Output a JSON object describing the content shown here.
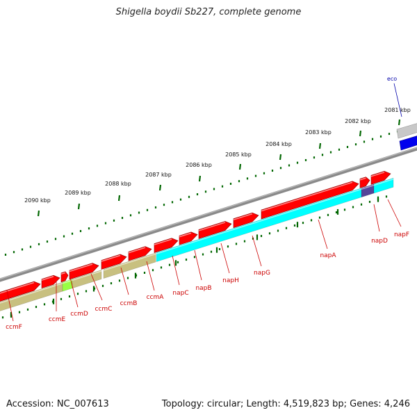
{
  "title": "Shigella boydii Sb227, complete genome",
  "accession_text": "Accession: NC_007613",
  "topology_text": "Topology: circular; Length: 4,519,823 bp; Genes: 4,246",
  "colors": {
    "backbone": "#8a8a8a",
    "gene_forward": "#ff0000",
    "ccm_operon": "#c8c080",
    "nap_operon": "#00ffff",
    "highlight_green": "#99ff44",
    "highlight_purple": "#554499",
    "gene_label": "#cc0000",
    "eco_label": "#0000aa",
    "tick": "#006600"
  },
  "ruler": [
    {
      "label": "2081 kbp"
    },
    {
      "label": "2082 kbp"
    },
    {
      "label": "2083 kbp"
    },
    {
      "label": "2084 kbp"
    },
    {
      "label": "2085 kbp"
    },
    {
      "label": "2086 kbp"
    },
    {
      "label": "2087 kbp"
    },
    {
      "label": "2088 kbp"
    },
    {
      "label": "2089 kbp"
    },
    {
      "label": "2090 kbp"
    }
  ],
  "gene_labels": [
    {
      "name": "ccmF"
    },
    {
      "name": "ccmE"
    },
    {
      "name": "ccmD"
    },
    {
      "name": "ccmC"
    },
    {
      "name": "ccmB"
    },
    {
      "name": "ccmA"
    },
    {
      "name": "napC"
    },
    {
      "name": "napB"
    },
    {
      "name": "napH"
    },
    {
      "name": "napG"
    },
    {
      "name": "napA"
    },
    {
      "name": "napD"
    },
    {
      "name": "napF"
    }
  ],
  "eco_label": "eco"
}
